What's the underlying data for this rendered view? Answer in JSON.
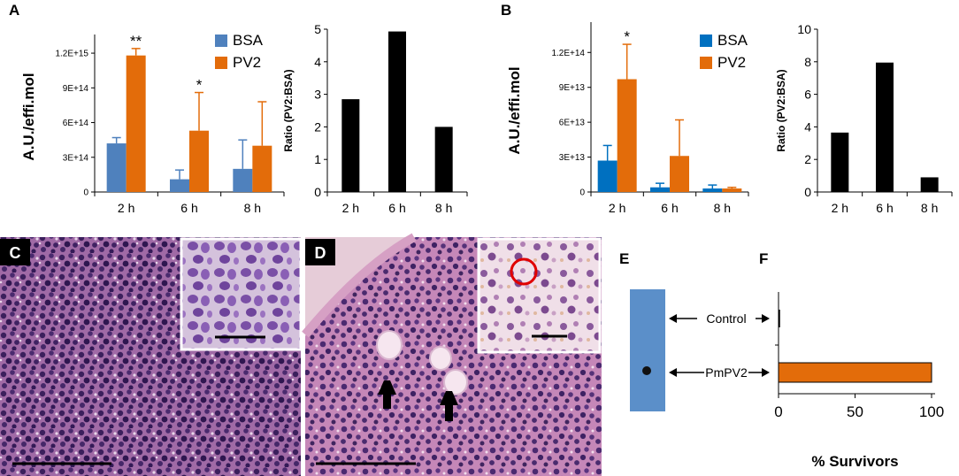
{
  "colors": {
    "bsa_a": "#4f81bd",
    "bsa_b": "#0070c0",
    "pv2": "#e36c0a",
    "ratio": "#000000",
    "blot": "#5b8fc9",
    "circle": "#e00000"
  },
  "panels": {
    "a": "A",
    "b": "B",
    "c": "C",
    "d": "D",
    "e": "E",
    "f": "F"
  },
  "chart_data": [
    {
      "id": "A-left",
      "type": "bar",
      "categories": [
        "2 h",
        "6 h",
        "8 h"
      ],
      "series": [
        {
          "name": "BSA",
          "values": [
            420000000000000.0,
            110000000000000.0,
            200000000000000.0
          ],
          "errors": [
            50000000000000.0,
            80000000000000.0,
            250000000000000.0
          ]
        },
        {
          "name": "PV2",
          "values": [
            1180000000000000.0,
            530000000000000.0,
            400000000000000.0
          ],
          "errors": [
            60000000000000.0,
            330000000000000.0,
            380000000000000.0
          ]
        }
      ],
      "stars": [
        "**",
        "*",
        ""
      ],
      "ylabel": "A.U./effi.mol",
      "yticks": [
        "0",
        "3E+14",
        "6E+14",
        "9E+14",
        "1.2E+15"
      ],
      "ytick_values": [
        0,
        300000000000000.0,
        600000000000000.0,
        900000000000000.0,
        1200000000000000.0
      ],
      "ylim": [
        0,
        1300000000000000.0
      ],
      "legend": "top-right"
    },
    {
      "id": "A-right",
      "type": "bar",
      "categories": [
        "2 h",
        "6 h",
        "8 h"
      ],
      "values": [
        2.85,
        4.93,
        2.0
      ],
      "ylabel": "Ratio (PV2:BSA)",
      "yticks": [
        "0",
        "1",
        "2",
        "3",
        "4",
        "5"
      ],
      "ytick_values": [
        0,
        1,
        2,
        3,
        4,
        5
      ],
      "ylim": [
        0,
        5
      ]
    },
    {
      "id": "B-left",
      "type": "bar",
      "categories": [
        "2 h",
        "6 h",
        "8 h"
      ],
      "series": [
        {
          "name": "BSA",
          "values": [
            27000000000000.0,
            4000000000000.0,
            3000000000000.0
          ],
          "errors": [
            13000000000000.0,
            3500000000000.0,
            3000000000000.0
          ]
        },
        {
          "name": "PV2",
          "values": [
            97000000000000.0,
            31000000000000.0,
            3000000000000.0
          ],
          "errors": [
            30000000000000.0,
            31000000000000.0,
            1000000000000.0
          ]
        }
      ],
      "stars": [
        "*",
        "",
        ""
      ],
      "ylabel": "A.U./effi.mol",
      "yticks": [
        "0",
        "3E+13",
        "6E+13",
        "9E+13",
        "1.2E+14"
      ],
      "ytick_values": [
        0,
        30000000000000.0,
        60000000000000.0,
        90000000000000.0,
        120000000000000.0
      ],
      "ylim": [
        0,
        140000000000000.0
      ],
      "legend": "top-right"
    },
    {
      "id": "B-right",
      "type": "bar",
      "categories": [
        "2 h",
        "6 h",
        "8 h"
      ],
      "values": [
        3.65,
        7.95,
        0.9
      ],
      "ylabel": "Ratio (PV2:BSA)",
      "yticks": [
        "0",
        "2",
        "4",
        "6",
        "8",
        "10"
      ],
      "ytick_values": [
        0,
        2,
        4,
        6,
        8,
        10
      ],
      "ylim": [
        0,
        10
      ]
    },
    {
      "id": "F",
      "type": "bar",
      "orientation": "horizontal",
      "categories": [
        "Control",
        "PmPV2"
      ],
      "values": [
        0,
        100
      ],
      "xlabel": "% Survivors",
      "xticks": [
        "0",
        "50",
        "100"
      ],
      "xtick_values": [
        0,
        50,
        100
      ],
      "xlim": [
        0,
        100
      ]
    }
  ]
}
